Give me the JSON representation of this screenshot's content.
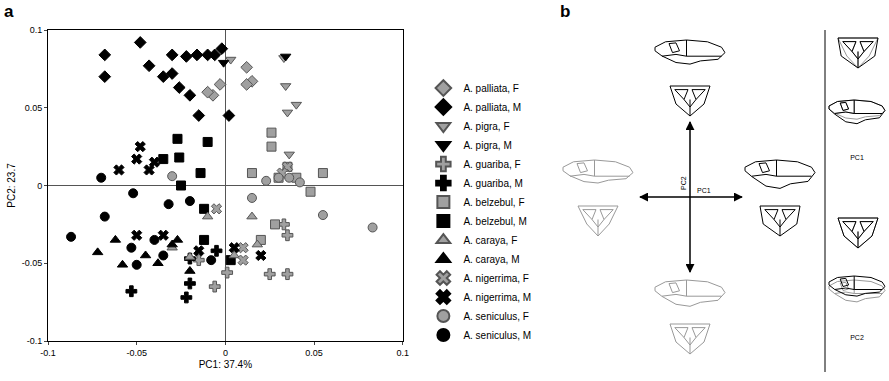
{
  "chart_data": {
    "type": "scatter",
    "label": "a",
    "x_label": "PC1: 37.4%",
    "y_label": "PC2: 23.7",
    "xlim": [
      -0.1,
      0.1
    ],
    "ylim": [
      -0.1,
      0.1
    ],
    "xticks": [
      -0.1,
      -0.05,
      0,
      0.05,
      0.1
    ],
    "yticks": [
      -0.1,
      -0.05,
      0,
      0.05,
      0.1
    ],
    "grid": false,
    "legend": "right",
    "series": [
      {
        "name": "A. palliata, F",
        "color": "#a0a0a0",
        "marker": "diamond",
        "x": [
          0.012,
          0.015,
          -0.003,
          -0.007,
          -0.01,
          0.012
        ],
        "y": [
          0.076,
          0.067,
          0.065,
          0.058,
          0.06,
          0.065
        ]
      },
      {
        "name": "A. palliata, M",
        "color": "#000000",
        "marker": "diamond",
        "x": [
          -0.068,
          -0.048,
          -0.068,
          -0.043,
          -0.035,
          -0.03,
          -0.03,
          -0.022,
          -0.016,
          -0.01,
          -0.006,
          -0.002,
          -0.026,
          -0.015,
          0.002,
          -0.02
        ],
        "y": [
          0.084,
          0.092,
          0.07,
          0.077,
          0.07,
          0.072,
          0.084,
          0.083,
          0.084,
          0.084,
          0.084,
          0.088,
          0.063,
          0.045,
          0.045,
          0.058
        ]
      },
      {
        "name": "A. pigra, F",
        "color": "#a0a0a0",
        "marker": "triangle-down",
        "x": [
          0.033,
          0.034,
          0.04,
          0.035,
          0.036,
          0.003
        ],
        "y": [
          0.082,
          0.064,
          0.052,
          0.047,
          0.02,
          0.081
        ]
      },
      {
        "name": "A. pigra, M",
        "color": "#000000",
        "marker": "triangle-down",
        "x": [
          0.034,
          -0.001
        ],
        "y": [
          0.083,
          0.079
        ]
      },
      {
        "name": "A. guariba, F",
        "color": "#a0a0a0",
        "marker": "cross",
        "x": [
          0.033,
          0.035,
          0.035,
          0.025,
          0.001,
          -0.006,
          -0.015
        ],
        "y": [
          -0.025,
          -0.032,
          -0.057,
          -0.057,
          -0.056,
          -0.065,
          -0.048
        ]
      },
      {
        "name": "A. guariba, M",
        "color": "#000000",
        "marker": "cross",
        "x": [
          -0.053,
          -0.02,
          -0.022,
          -0.02,
          -0.005
        ],
        "y": [
          -0.068,
          -0.063,
          -0.072,
          -0.047,
          -0.042
        ]
      },
      {
        "name": "A. belzebul, F",
        "color": "#a0a0a0",
        "marker": "square",
        "x": [
          0.026,
          0.026,
          0.035,
          0.03,
          0.04,
          0.055,
          0.028,
          0.02,
          0.048,
          0.015
        ],
        "y": [
          0.034,
          0.025,
          0.012,
          0.005,
          0.005,
          0.008,
          -0.025,
          -0.035,
          -0.004,
          0.008
        ]
      },
      {
        "name": "A. belzebul, M",
        "color": "#000000",
        "marker": "square",
        "x": [
          -0.027,
          -0.026,
          -0.035,
          -0.01,
          -0.014,
          -0.025,
          -0.012,
          -0.012,
          0.003
        ],
        "y": [
          0.03,
          0.018,
          0.017,
          0.028,
          0.008,
          0.0,
          -0.015,
          -0.035,
          -0.048
        ]
      },
      {
        "name": "A. caraya, F",
        "color": "#a0a0a0",
        "marker": "triangle-up",
        "x": [
          -0.03,
          -0.02,
          0.005,
          0.015,
          0.018,
          -0.01
        ],
        "y": [
          -0.04,
          -0.046,
          -0.045,
          -0.02,
          -0.038,
          -0.02
        ]
      },
      {
        "name": "A. caraya, M",
        "color": "#000000",
        "marker": "triangle-up",
        "x": [
          -0.072,
          -0.062,
          -0.058,
          -0.045,
          -0.038,
          -0.03,
          -0.02,
          -0.027
        ],
        "y": [
          -0.043,
          -0.035,
          -0.051,
          -0.045,
          -0.05,
          -0.038,
          -0.055,
          -0.035
        ]
      },
      {
        "name": "A. nigerrima, F",
        "color": "#a0a0a0",
        "marker": "x",
        "x": [
          0.035,
          0.032,
          0.01,
          0.01,
          -0.005
        ],
        "y": [
          0.012,
          0.008,
          -0.04,
          -0.048,
          -0.015
        ]
      },
      {
        "name": "A. nigerrima, M",
        "color": "#000000",
        "marker": "x",
        "x": [
          -0.048,
          -0.05,
          -0.04,
          -0.043,
          -0.06,
          -0.035,
          -0.05,
          -0.015,
          0.02,
          0.005
        ],
        "y": [
          0.025,
          0.017,
          0.015,
          0.01,
          0.01,
          -0.032,
          -0.032,
          -0.042,
          -0.045,
          -0.04
        ]
      },
      {
        "name": "A. seniculus, F",
        "color": "#a0a0a0",
        "marker": "circle",
        "x": [
          0.083,
          0.055,
          0.042,
          0.036,
          0.03,
          0.023,
          -0.03,
          0.015
        ],
        "y": [
          -0.027,
          -0.019,
          0.002,
          0.005,
          0.005,
          0.003,
          0.006,
          -0.008
        ]
      },
      {
        "name": "A. seniculus, M",
        "color": "#000000",
        "marker": "circle",
        "x": [
          -0.087,
          -0.07,
          -0.068,
          -0.053,
          -0.05,
          -0.04,
          -0.052,
          -0.032,
          -0.035,
          -0.02,
          -0.008
        ],
        "y": [
          -0.033,
          0.005,
          -0.02,
          -0.04,
          -0.051,
          -0.035,
          -0.005,
          -0.012,
          -0.045,
          -0.01,
          -0.048
        ]
      }
    ]
  },
  "diagram": {
    "label": "b",
    "center_axes": [
      "PC1",
      "PC2"
    ],
    "comparisons": [
      "PC1",
      "PC2"
    ]
  }
}
